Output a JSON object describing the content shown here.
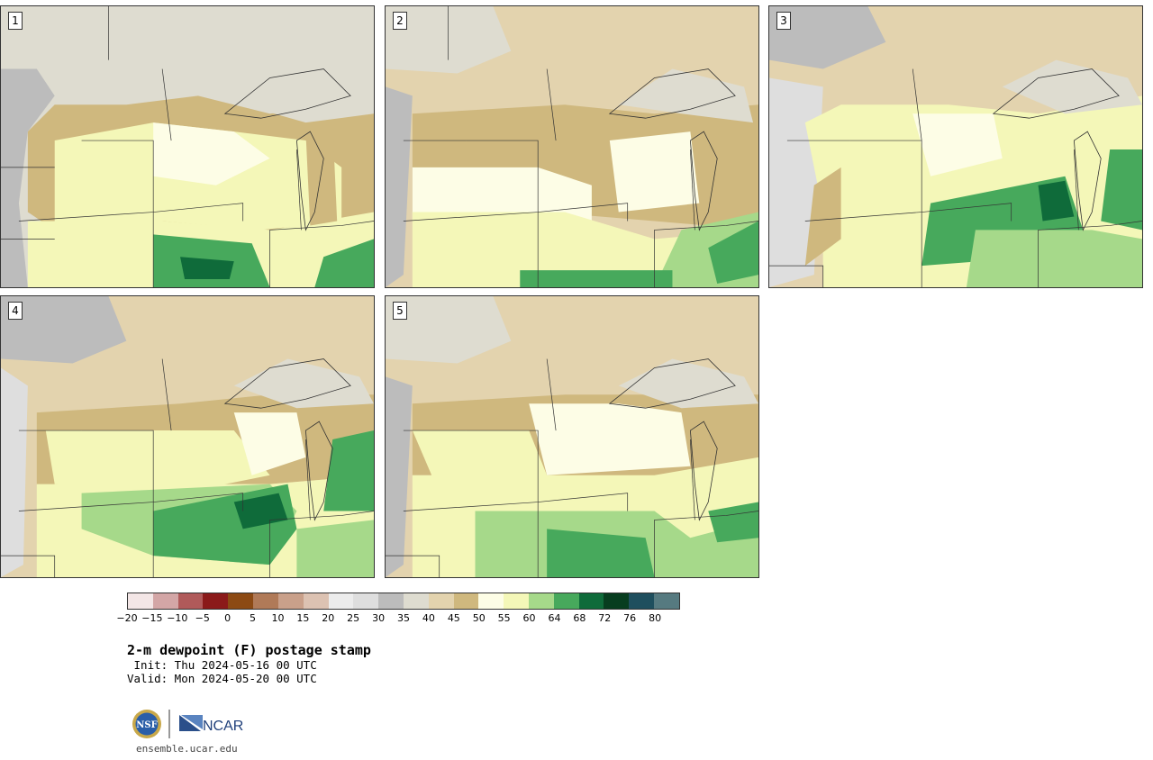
{
  "panels": [
    {
      "id": "1",
      "label": "1"
    },
    {
      "id": "2",
      "label": "2"
    },
    {
      "id": "3",
      "label": "3"
    },
    {
      "id": "4",
      "label": "4"
    },
    {
      "id": "5",
      "label": "5"
    }
  ],
  "colorbar": {
    "colors": [
      "#f3e6e6",
      "#d3a6a6",
      "#b05a5a",
      "#8b1a1a",
      "#8c4a14",
      "#b07a58",
      "#c9a08a",
      "#dcc2b2",
      "#ececec",
      "#dedede",
      "#bcbcbc",
      "#dedcd0",
      "#e3d3ae",
      "#cfb87e",
      "#fdfde6",
      "#f4f7b8",
      "#a6d98a",
      "#47a95c",
      "#0f6b3a",
      "#073d1f",
      "#1f4f5e",
      "#567a80"
    ],
    "tick_labels": [
      "−20",
      "−15",
      "−10",
      "−5",
      "0",
      "5",
      "10",
      "15",
      "20",
      "25",
      "30",
      "35",
      "40",
      "45",
      "50",
      "55",
      "60",
      "64",
      "68",
      "72",
      "76",
      "80"
    ]
  },
  "title": "2-m dewpoint (F) postage stamp",
  "init_line": " Init: Thu 2024-05-16 00 UTC",
  "valid_line": "Valid: Mon 2024-05-20 00 UTC",
  "logos": {
    "nsf": "NSF",
    "ncar": "NCAR"
  },
  "url": "ensemble.ucar.edu"
}
